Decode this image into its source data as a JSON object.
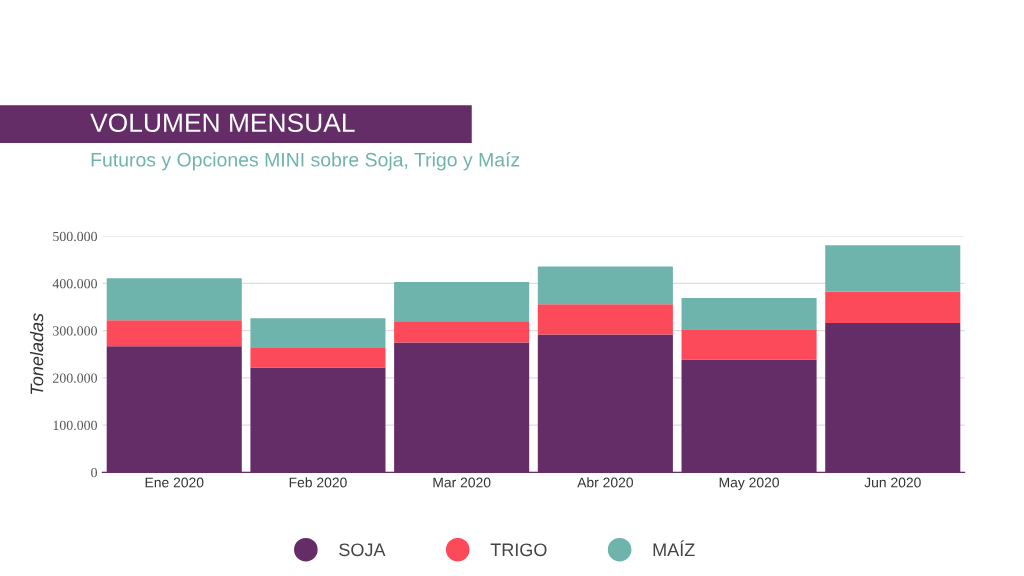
{
  "chart_data": {
    "type": "bar",
    "title": "VOLUMEN MENSUAL",
    "subtitle": "Futuros y Opciones MINI sobre Soja, Trigo y Maíz",
    "ylabel": "Toneladas",
    "categories": [
      "Ene 2020",
      "Feb 2020",
      "Mar 2020",
      "Abr 2020",
      "May 2020",
      "Jun 2020"
    ],
    "stacked": true,
    "series": [
      {
        "name": "SOJA",
        "color": "#652d67",
        "values": [
          267000,
          222000,
          275000,
          292000,
          239000,
          316000
        ]
      },
      {
        "name": "TRIGO",
        "color": "#fc4a5a",
        "values": [
          55000,
          41000,
          43000,
          64000,
          64000,
          67000
        ]
      },
      {
        "name": "MAÍZ",
        "color": "#6fb3ad",
        "values": [
          89000,
          63000,
          85000,
          80000,
          66000,
          98000
        ]
      }
    ],
    "ylim": [
      0,
      500000
    ],
    "yticks": [
      0,
      {
        "value": 100000,
        "label": "100.000"
      },
      {
        "value": 200000,
        "label": "200.000"
      },
      {
        "value": 300000,
        "label": "300.000"
      },
      {
        "value": 400000,
        "label": "400.000"
      },
      {
        "value": 500000,
        "label": "500.000"
      }
    ],
    "grid": "y",
    "legend": "bottom"
  }
}
